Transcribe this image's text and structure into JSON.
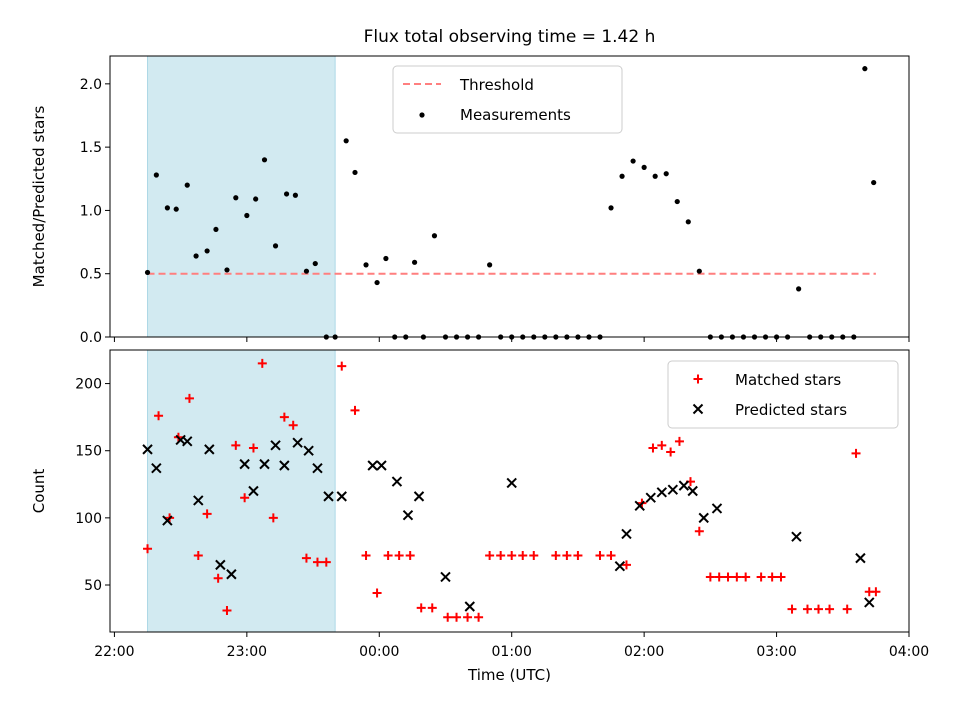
{
  "chart_data": [
    {
      "type": "scatter",
      "title": "Flux total observing time = 1.42 h",
      "xlabel": "",
      "ylabel": "Matched/Predicted stars",
      "xlim": [
        "21:58",
        "04:00"
      ],
      "ylim": [
        0,
        2.22
      ],
      "yticks": [
        "0.0",
        "0.5",
        "1.0",
        "1.5",
        "2.0"
      ],
      "shaded_span": [
        "22:15",
        "23:40"
      ],
      "shaded_color": "#add8e6",
      "legend": {
        "placement": "top-center",
        "entries": [
          "Threshold",
          "Measurements"
        ]
      },
      "threshold": {
        "name": "Threshold",
        "value": 0.5,
        "x": [
          "22:15",
          "03:45"
        ],
        "color": "#ff7f7f",
        "style": "dashed"
      },
      "series": [
        {
          "name": "Measurements",
          "color": "#000000",
          "marker": "dot",
          "x": [
            "22:15",
            "22:19",
            "22:24",
            "22:28",
            "22:33",
            "22:37",
            "22:42",
            "22:46",
            "22:51",
            "22:55",
            "23:00",
            "23:04",
            "23:08",
            "23:13",
            "23:18",
            "23:22",
            "23:27",
            "23:31",
            "23:36",
            "23:40",
            "23:45",
            "23:49",
            "23:54",
            "23:59",
            "00:03",
            "00:07",
            "00:12",
            "00:16",
            "00:20",
            "00:25",
            "00:30",
            "00:35",
            "00:40",
            "00:45",
            "00:50",
            "00:55",
            "01:00",
            "01:05",
            "01:10",
            "01:15",
            "01:20",
            "01:25",
            "01:30",
            "01:35",
            "01:40",
            "01:45",
            "01:50",
            "01:55",
            "02:00",
            "02:05",
            "02:10",
            "02:15",
            "02:20",
            "02:25",
            "02:30",
            "02:35",
            "02:40",
            "02:45",
            "02:50",
            "02:55",
            "03:00",
            "03:05",
            "03:10",
            "03:15",
            "03:20",
            "03:25",
            "03:30",
            "03:35",
            "03:40",
            "03:44"
          ],
          "y": [
            0.51,
            1.28,
            1.02,
            1.01,
            1.2,
            0.64,
            0.68,
            0.85,
            0.53,
            1.1,
            0.96,
            1.09,
            1.4,
            0.72,
            1.13,
            1.12,
            0.52,
            0.58,
            0.0,
            0.0,
            1.55,
            1.3,
            0.57,
            0.43,
            0.62,
            0.0,
            0.0,
            0.59,
            0.0,
            0.8,
            0.0,
            0.0,
            0.0,
            0.0,
            0.57,
            0.0,
            0.0,
            0.0,
            0.0,
            0.0,
            0.0,
            0.0,
            0.0,
            0.0,
            0.0,
            1.02,
            1.27,
            1.39,
            1.34,
            1.27,
            1.29,
            1.07,
            0.91,
            0.52,
            0.0,
            0.0,
            0.0,
            0.0,
            0.0,
            0.0,
            0.0,
            0.0,
            0.38,
            0.0,
            0.0,
            0.0,
            0.0,
            0.0,
            2.12,
            1.22
          ]
        }
      ]
    },
    {
      "type": "scatter",
      "title": "",
      "xlabel": "Time (UTC)",
      "ylabel": "Count",
      "xlim": [
        "21:58",
        "04:00"
      ],
      "ylim": [
        15,
        225
      ],
      "xticks": [
        "22:00",
        "23:00",
        "00:00",
        "01:00",
        "02:00",
        "03:00",
        "04:00"
      ],
      "yticks": [
        "50",
        "100",
        "150",
        "200"
      ],
      "shaded_span": [
        "22:15",
        "23:40"
      ],
      "shaded_color": "#add8e6",
      "legend": {
        "placement": "top-right",
        "entries": [
          "Matched stars",
          "Predicted stars"
        ]
      },
      "series": [
        {
          "name": "Matched stars",
          "color": "#ff0000",
          "marker": "plus",
          "x": [
            "22:15",
            "22:20",
            "22:25",
            "22:29",
            "22:34",
            "22:38",
            "22:42",
            "22:47",
            "22:51",
            "22:55",
            "22:59",
            "23:03",
            "23:07",
            "23:12",
            "23:17",
            "23:21",
            "23:27",
            "23:32",
            "23:36",
            "23:43",
            "23:49",
            "23:54",
            "23:59",
            "00:04",
            "00:09",
            "00:14",
            "00:19",
            "00:24",
            "00:31",
            "00:35",
            "00:40",
            "00:45",
            "00:50",
            "00:55",
            "01:00",
            "01:05",
            "01:10",
            "01:20",
            "01:25",
            "01:30",
            "01:40",
            "01:45",
            "01:52",
            "01:59",
            "02:04",
            "02:08",
            "02:12",
            "02:16",
            "02:21",
            "02:25",
            "02:30",
            "02:34",
            "02:38",
            "02:42",
            "02:46",
            "02:53",
            "02:58",
            "03:02",
            "03:07",
            "03:14",
            "03:19",
            "03:24",
            "03:32",
            "03:36",
            "03:42",
            "03:45"
          ],
          "y": [
            77,
            176,
            100,
            160,
            189,
            72,
            103,
            55,
            31,
            154,
            115,
            152,
            215,
            100,
            175,
            169,
            70,
            67,
            67,
            213,
            180,
            72,
            44,
            72,
            72,
            72,
            33,
            33,
            26,
            26,
            26,
            26,
            72,
            72,
            72,
            72,
            72,
            72,
            72,
            72,
            72,
            72,
            65,
            111,
            152,
            154,
            149,
            157,
            127,
            90,
            56,
            56,
            56,
            56,
            56,
            56,
            56,
            56,
            32,
            32,
            32,
            32,
            32,
            148,
            45,
            45
          ]
        },
        {
          "name": "Predicted stars",
          "color": "#000000",
          "marker": "x",
          "x": [
            "22:15",
            "22:19",
            "22:24",
            "22:30",
            "22:33",
            "22:38",
            "22:43",
            "22:48",
            "22:53",
            "22:59",
            "23:03",
            "23:08",
            "23:13",
            "23:17",
            "23:23",
            "23:28",
            "23:32",
            "23:37",
            "23:43",
            "23:57",
            "00:01",
            "00:08",
            "00:13",
            "00:18",
            "00:30",
            "00:41",
            "01:00",
            "01:49",
            "01:52",
            "01:58",
            "02:03",
            "02:08",
            "02:13",
            "02:18",
            "02:22",
            "02:27",
            "02:33",
            "03:09",
            "03:38",
            "03:42"
          ],
          "y": [
            151,
            137,
            98,
            158,
            157,
            113,
            151,
            65,
            58,
            140,
            120,
            140,
            154,
            139,
            156,
            150,
            137,
            116,
            116,
            139,
            139,
            127,
            102,
            116,
            56,
            34,
            126,
            64,
            88,
            109,
            115,
            119,
            121,
            124,
            120,
            100,
            107,
            86,
            70,
            37
          ]
        }
      ]
    }
  ]
}
